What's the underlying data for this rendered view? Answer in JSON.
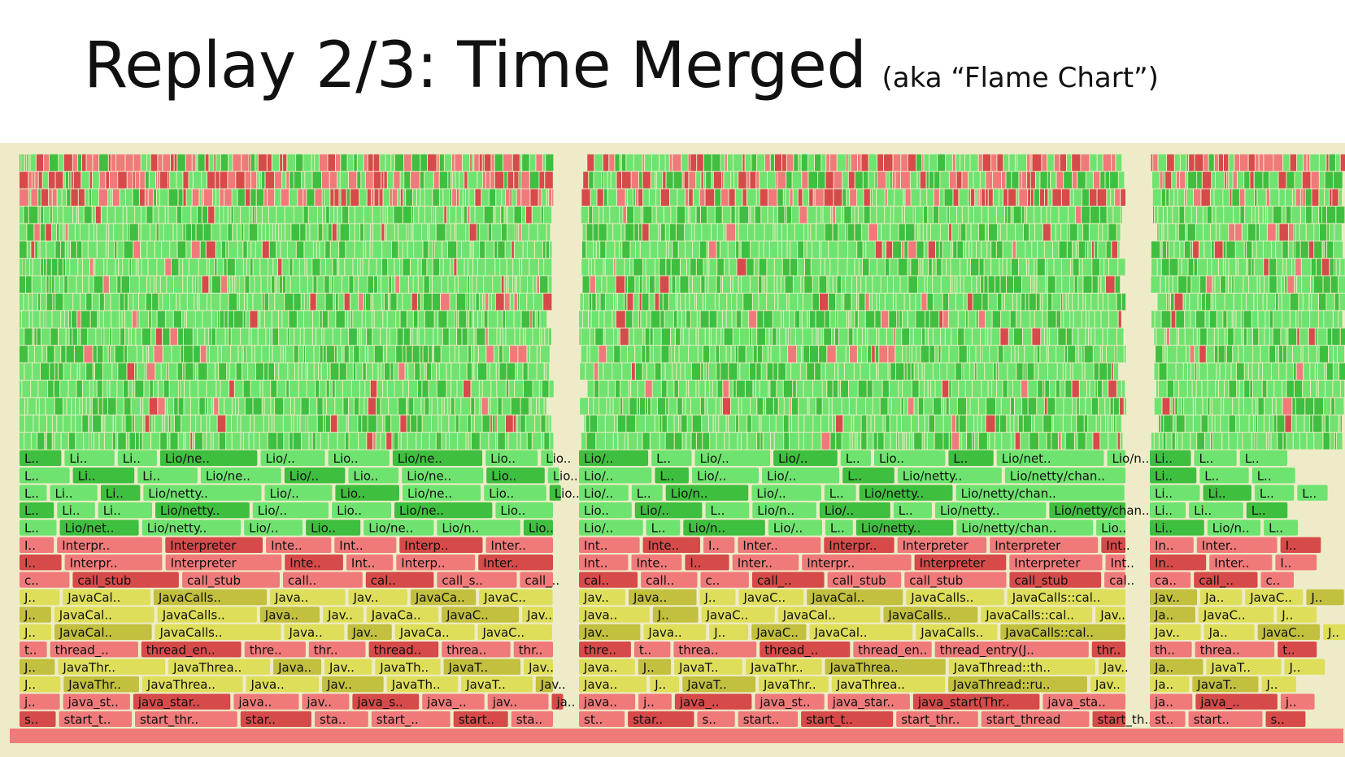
{
  "slide": {
    "title": "Replay 2/3: Time Merged",
    "subtitle": "(aka “Flame Chart”)"
  },
  "colors": {
    "background": "#eeecc8",
    "java": "#6fe36f",
    "java_dark": "#3fbf3f",
    "jvm": "#f07a7a",
    "jvm_dark": "#d74a4a",
    "cpp": "#dede5a",
    "cpp_dark": "#c2c03e"
  },
  "chart_data": {
    "type": "flame",
    "ordering": "time (x-axis is time, not alphabetical)",
    "rows_bottom_to_top": [
      {
        "kind": "jvm",
        "labels": [
          "s..",
          "start_t..",
          "start_thr..",
          "star..",
          "sta..",
          "start_..",
          "start..",
          "sta..",
          "st..",
          "star..",
          "s..",
          "start..",
          "start_t..",
          "start_thr..",
          "start_thread",
          "start_th..",
          "st..",
          "start..",
          "s.."
        ]
      },
      {
        "kind": "jvm",
        "labels": [
          "j..",
          "java_st..",
          "java_star..",
          "java..",
          "jav..",
          "java_s..",
          "java_..",
          "jav..",
          "ja..",
          "java..",
          "j..",
          "java_..",
          "java_st..",
          "java_star..",
          "java_start(Thr..",
          "java_sta..",
          "ja..",
          "java_..",
          "j.."
        ]
      },
      {
        "kind": "cpp",
        "labels": [
          "J..",
          "JavaThr..",
          "JavaThrea..",
          "Java..",
          "Jav..",
          "JavaTh..",
          "JavaT..",
          "Jav..",
          "Java..",
          "J..",
          "JavaT..",
          "JavaThr..",
          "JavaThrea..",
          "JavaThread::ru..",
          "Jav..",
          "Ja..",
          "JavaT..",
          "J.."
        ]
      },
      {
        "kind": "cpp",
        "labels": [
          "J..",
          "JavaThr..",
          "JavaThrea..",
          "Java..",
          "Jav..",
          "JavaTh..",
          "JavaT..",
          "Jav..",
          "Java..",
          "J..",
          "JavaT..",
          "JavaThr..",
          "JavaThrea..",
          "JavaThread::th..",
          "Jav..",
          "Ja..",
          "JavaT..",
          "J.."
        ]
      },
      {
        "kind": "jvm",
        "labels": [
          "t..",
          "thread_..",
          "thread_en..",
          "thre..",
          "thr..",
          "thread..",
          "threa..",
          "thr..",
          "thre..",
          "t..",
          "threa..",
          "thread_..",
          "thread_en..",
          "thread_entry(J..",
          "thr..",
          "th..",
          "threa..",
          "t.."
        ]
      },
      {
        "kind": "cpp",
        "labels": [
          "J..",
          "JavaCal..",
          "JavaCalls..",
          "Java..",
          "Jav..",
          "JavaCa..",
          "JavaC..",
          "Jav..",
          "Java..",
          "J..",
          "JavaC..",
          "JavaCal..",
          "JavaCalls..",
          "JavaCalls::cal..",
          "Jav..",
          "Ja..",
          "JavaC..",
          "J.."
        ]
      },
      {
        "kind": "cpp",
        "labels": [
          "J..",
          "JavaCal..",
          "JavaCalls..",
          "Java..",
          "Jav..",
          "JavaCa..",
          "JavaC..",
          "Jav..",
          "Java..",
          "J..",
          "JavaC..",
          "JavaCal..",
          "JavaCalls..",
          "JavaCalls::cal..",
          "Jav..",
          "Ja..",
          "JavaC..",
          "J.."
        ]
      },
      {
        "kind": "cpp",
        "labels": [
          "J..",
          "JavaCal..",
          "JavaCalls..",
          "Java..",
          "Jav..",
          "JavaCa..",
          "JavaC..",
          "Jav..",
          "Java..",
          "J..",
          "JavaC..",
          "JavaCal..",
          "JavaCalls..",
          "JavaCalls::cal..",
          "Jav..",
          "Ja..",
          "JavaC..",
          "J.."
        ]
      },
      {
        "kind": "jvm",
        "labels": [
          "c..",
          "call_stub",
          "call_stub",
          "call..",
          "cal..",
          "call_s..",
          "call_..",
          "cal..",
          "call..",
          "c..",
          "call_..",
          "call_stub",
          "call_stub",
          "call_stub",
          "cal..",
          "ca..",
          "call_..",
          "c.."
        ]
      },
      {
        "kind": "jvm",
        "labels": [
          "I..",
          "Interpr..",
          "Interpreter",
          "Inte..",
          "Int..",
          "Interp..",
          "Inter..",
          "Int..",
          "Inte..",
          "I..",
          "Inter..",
          "Interpr..",
          "Interpreter",
          "Interpreter",
          "Int..",
          "In..",
          "Inter..",
          "I.."
        ]
      },
      {
        "kind": "jvm",
        "labels": [
          "I..",
          "Interpr..",
          "Interpreter",
          "Inte..",
          "Int..",
          "Interp..",
          "Inter..",
          "Int..",
          "Inte..",
          "I..",
          "Inter..",
          "Interpr..",
          "Interpreter",
          "Interpreter",
          "Int..",
          "In..",
          "Inter..",
          "I.."
        ]
      },
      {
        "kind": "java",
        "labels": [
          "L..",
          "Lio/net..",
          "Lio/netty..",
          "Lio/..",
          "Lio..",
          "Lio/ne..",
          "Lio/n..",
          "Lio..",
          "Lio/..",
          "L..",
          "Lio/n..",
          "Lio/..",
          "L..",
          "Lio/netty..",
          "Lio/netty/chan..",
          "Lio..",
          "Li..",
          "Lio/n..",
          "L.."
        ]
      },
      {
        "kind": "java",
        "labels": [
          "L..",
          "Li..",
          "Li..",
          "Lio/netty..",
          "Lio/..",
          "Lio..",
          "Lio/ne..",
          "Lio..",
          "Lio..",
          "Lio/..",
          "L..",
          "Lio/n..",
          "Lio/..",
          "L..",
          "Lio/netty..",
          "Lio/netty/chan..",
          "Li..",
          "Li..",
          "L.."
        ]
      },
      {
        "kind": "java",
        "labels": [
          "L..",
          "Li..",
          "Li..",
          "Lio/netty..",
          "Lio/..",
          "Lio..",
          "Lio/ne..",
          "Lio..",
          "Lio..",
          "Lio/..",
          "L..",
          "Lio/n..",
          "Lio/..",
          "L..",
          "Lio/netty..",
          "Lio/netty/chan..",
          "Li..",
          "Li..",
          "L..",
          "L.."
        ]
      },
      {
        "kind": "java",
        "labels": [
          "L..",
          "Li..",
          "Li..",
          "Lio/ne..",
          "Lio/..",
          "Lio..",
          "Lio/ne..",
          "Lio..",
          "Lio..",
          "Lio/..",
          "L..",
          "Lio/..",
          "Lio/..",
          "L..",
          "Lio/netty..",
          "Lio/netty/chan..",
          "Li..",
          "L..",
          "L.."
        ]
      },
      {
        "kind": "java",
        "labels": [
          "L..",
          "Li..",
          "Li..",
          "Lio/ne..",
          "Lio/..",
          "Lio..",
          "Lio/ne..",
          "Lio..",
          "Lio..",
          "Lio/..",
          "L..",
          "Lio/..",
          "Lio/..",
          "L..",
          "Lio..",
          "L..",
          "Lio/net..",
          "Lio/n..",
          "Li..",
          "L..",
          "L.."
        ]
      }
    ]
  }
}
